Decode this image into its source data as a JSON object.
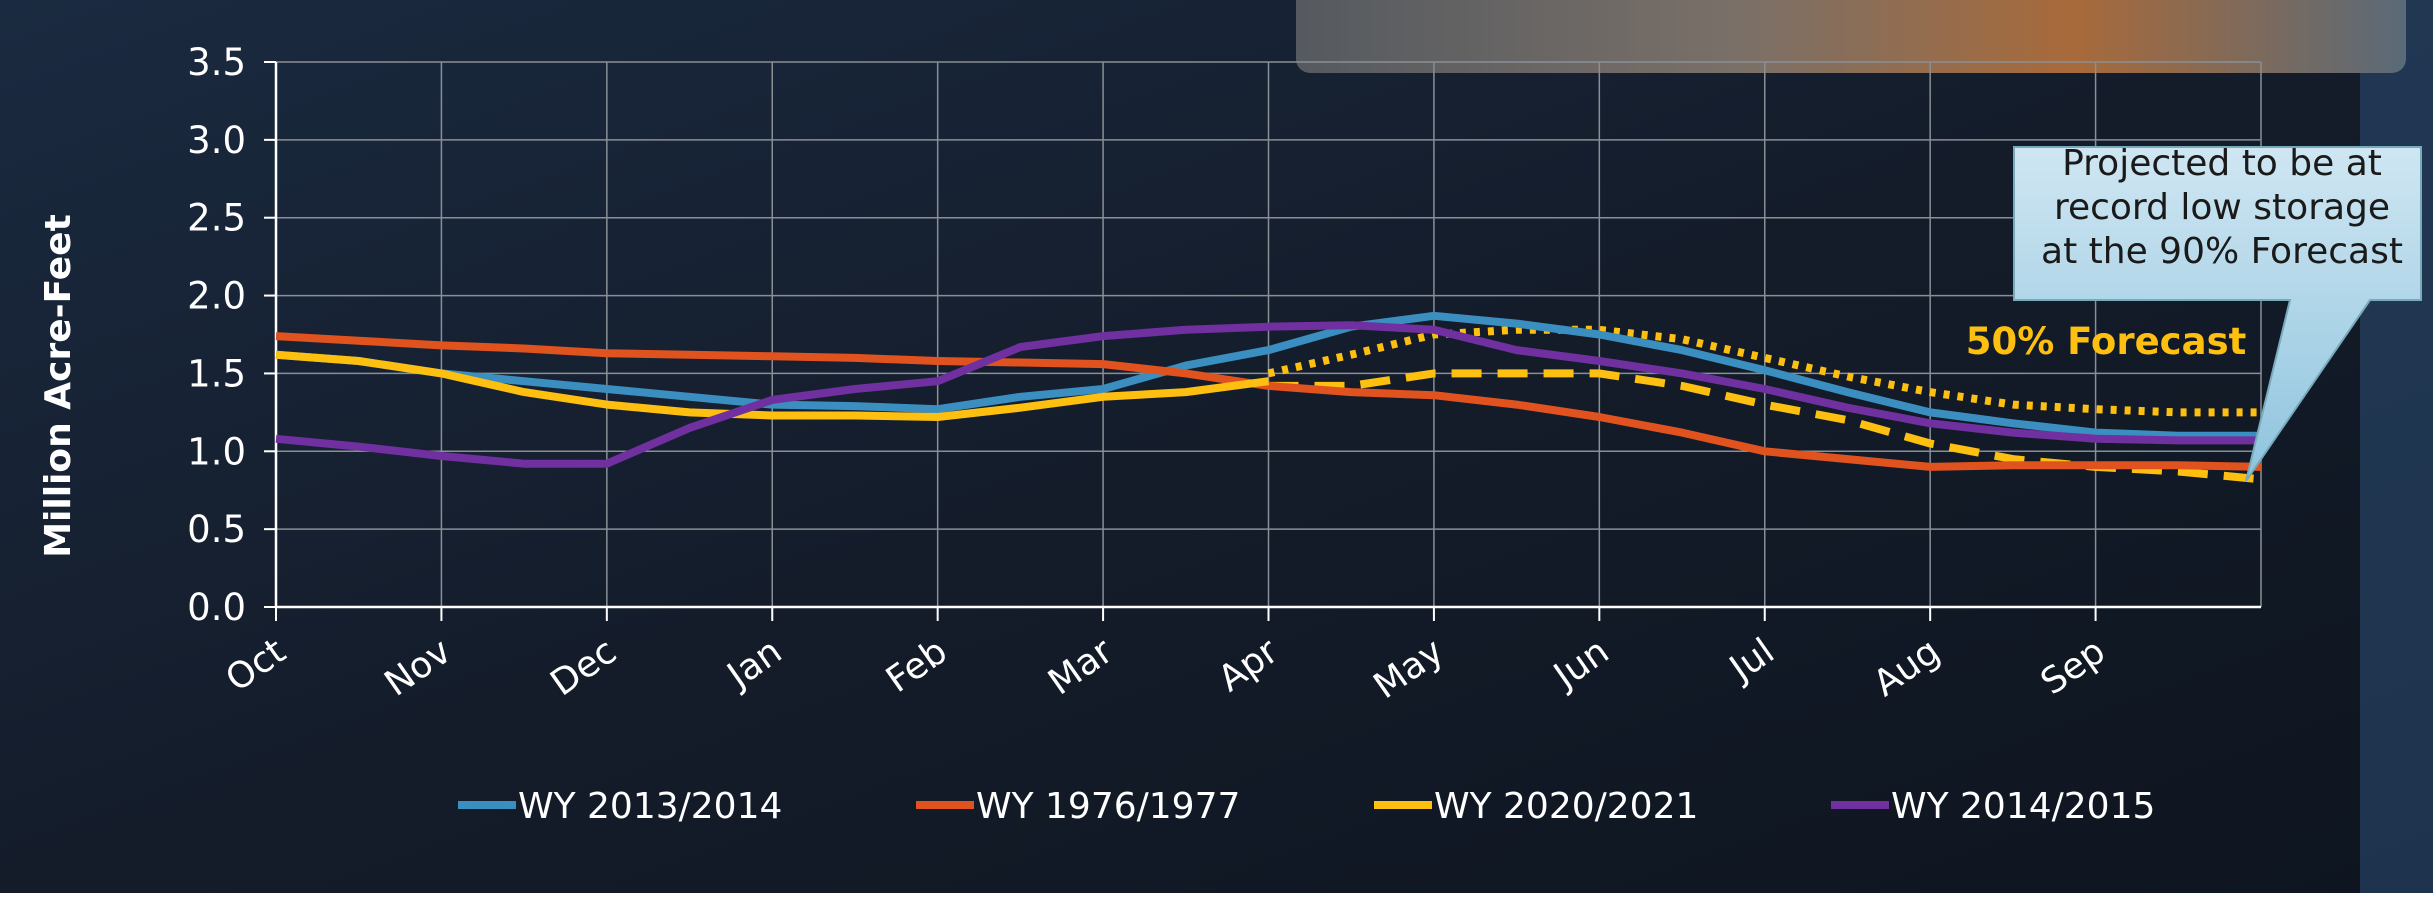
{
  "chart_data": {
    "type": "line",
    "ylabel": "Million Acre-Feet",
    "x": [
      0,
      0.5,
      1,
      1.5,
      2,
      2.5,
      3,
      3.5,
      4,
      4.5,
      5,
      5.5,
      6,
      6.5,
      7,
      7.5,
      8,
      8.5,
      9,
      9.5,
      10,
      10.5,
      11,
      11.5,
      12
    ],
    "xlim": [
      0,
      12
    ],
    "xticks": [
      {
        "value": 0,
        "label": "Oct"
      },
      {
        "value": 1,
        "label": "Nov"
      },
      {
        "value": 2,
        "label": "Dec"
      },
      {
        "value": 3,
        "label": "Jan"
      },
      {
        "value": 4,
        "label": "Feb"
      },
      {
        "value": 5,
        "label": "Mar"
      },
      {
        "value": 6,
        "label": "Apr"
      },
      {
        "value": 7,
        "label": "May"
      },
      {
        "value": 8,
        "label": "Jun"
      },
      {
        "value": 9,
        "label": "Jul"
      },
      {
        "value": 10,
        "label": "Aug"
      },
      {
        "value": 11,
        "label": "Sep"
      }
    ],
    "ylim": [
      0,
      3.5
    ],
    "yticks": [
      {
        "value": 0,
        "label": "0.0"
      },
      {
        "value": 0.5,
        "label": "0.5"
      },
      {
        "value": 1,
        "label": "1.0"
      },
      {
        "value": 1.5,
        "label": "1.5"
      },
      {
        "value": 2,
        "label": "2.0"
      },
      {
        "value": 2.5,
        "label": "2.5"
      },
      {
        "value": 3,
        "label": "3.0"
      },
      {
        "value": 3.5,
        "label": "3.5"
      }
    ],
    "grid": true,
    "series": [
      {
        "name": "WY 2013/2014",
        "color": "#3a8fc0",
        "values": [
          1.62,
          1.58,
          1.5,
          1.45,
          1.4,
          1.35,
          1.3,
          1.29,
          1.27,
          1.35,
          1.4,
          1.55,
          1.65,
          1.8,
          1.87,
          1.82,
          1.75,
          1.65,
          1.52,
          1.38,
          1.25,
          1.18,
          1.12,
          1.1,
          1.1
        ]
      },
      {
        "name": "WY 1976/1977",
        "color": "#e0531f",
        "values": [
          1.74,
          1.71,
          1.68,
          1.66,
          1.63,
          1.62,
          1.61,
          1.6,
          1.58,
          1.57,
          1.56,
          1.5,
          1.42,
          1.38,
          1.36,
          1.3,
          1.22,
          1.12,
          1.0,
          0.95,
          0.9,
          0.91,
          0.91,
          0.91,
          0.9
        ]
      },
      {
        "name": "WY 2020/2021",
        "color": "#fdc010",
        "values": [
          1.62,
          1.58,
          1.5,
          1.38,
          1.3,
          1.25,
          1.23,
          1.23,
          1.22,
          1.28,
          1.35,
          1.38,
          1.45,
          null,
          null,
          null,
          null,
          null,
          null,
          null,
          null,
          null,
          null,
          null,
          null
        ]
      },
      {
        "name": "WY 2014/2015",
        "color": "#7030a0",
        "values": [
          1.08,
          1.03,
          0.97,
          0.92,
          0.92,
          1.15,
          1.33,
          1.4,
          1.45,
          1.67,
          1.74,
          1.78,
          1.8,
          1.81,
          1.78,
          1.65,
          1.58,
          1.5,
          1.4,
          1.28,
          1.18,
          1.12,
          1.08,
          1.07,
          1.07
        ]
      }
    ],
    "forecasts": [
      {
        "dash": "dotted",
        "color": "#fdc010",
        "values": [
          null,
          null,
          null,
          null,
          null,
          null,
          null,
          null,
          null,
          null,
          null,
          null,
          1.5,
          1.62,
          1.75,
          1.78,
          1.78,
          1.72,
          1.6,
          1.48,
          1.38,
          1.3,
          1.27,
          1.25,
          1.25
        ]
      },
      {
        "dash": "dashed",
        "color": "#fdc010",
        "values": [
          null,
          null,
          null,
          null,
          null,
          null,
          null,
          null,
          null,
          null,
          null,
          null,
          1.42,
          1.42,
          1.5,
          1.5,
          1.5,
          1.42,
          1.3,
          1.2,
          1.05,
          0.95,
          0.9,
          0.87,
          0.82
        ]
      }
    ],
    "annotations": [
      "50% Forecast",
      "Projected to be at record low storage at the 90% Forecast"
    ]
  }
}
